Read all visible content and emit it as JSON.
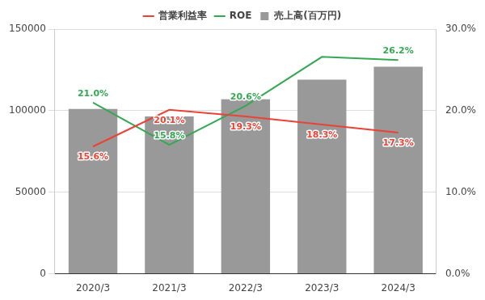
{
  "chart_data": {
    "type": "bar",
    "categories": [
      "2020/3",
      "2021/3",
      "2022/3",
      "2023/3",
      "2024/3"
    ],
    "series": [
      {
        "name": "売上高(百万円)",
        "type": "bar",
        "color": "#999999",
        "values": [
          101000,
          96500,
          107000,
          119000,
          127000
        ],
        "data_labels": false
      },
      {
        "name": "営業利益率",
        "type": "line",
        "color": "#ea4335",
        "axis": "y2",
        "values": [
          15.6,
          20.1,
          19.3,
          18.3,
          17.3
        ],
        "value_labels": [
          "15.6%",
          "20.1%",
          "19.3%",
          "18.3%",
          "17.3%"
        ],
        "data_labels": true
      },
      {
        "name": "ROE",
        "type": "line",
        "color": "#34a853",
        "axis": "y2",
        "values": [
          21.0,
          15.8,
          20.6,
          26.6,
          26.2
        ],
        "value_labels": [
          "21.0%",
          "15.8%",
          "20.6%",
          null,
          "26.2%"
        ],
        "data_labels": true
      }
    ],
    "ylim": [
      0,
      150000
    ],
    "yticks": [
      0,
      50000,
      100000,
      150000
    ],
    "y2lim": [
      0,
      30
    ],
    "y2ticks": [
      {
        "value": 0,
        "label": "0.0%"
      },
      {
        "value": 10,
        "label": "10.0%"
      },
      {
        "value": 20,
        "label": "20.0%"
      },
      {
        "value": 30,
        "label": "30.0%"
      }
    ],
    "grid": true,
    "legend": "top"
  }
}
